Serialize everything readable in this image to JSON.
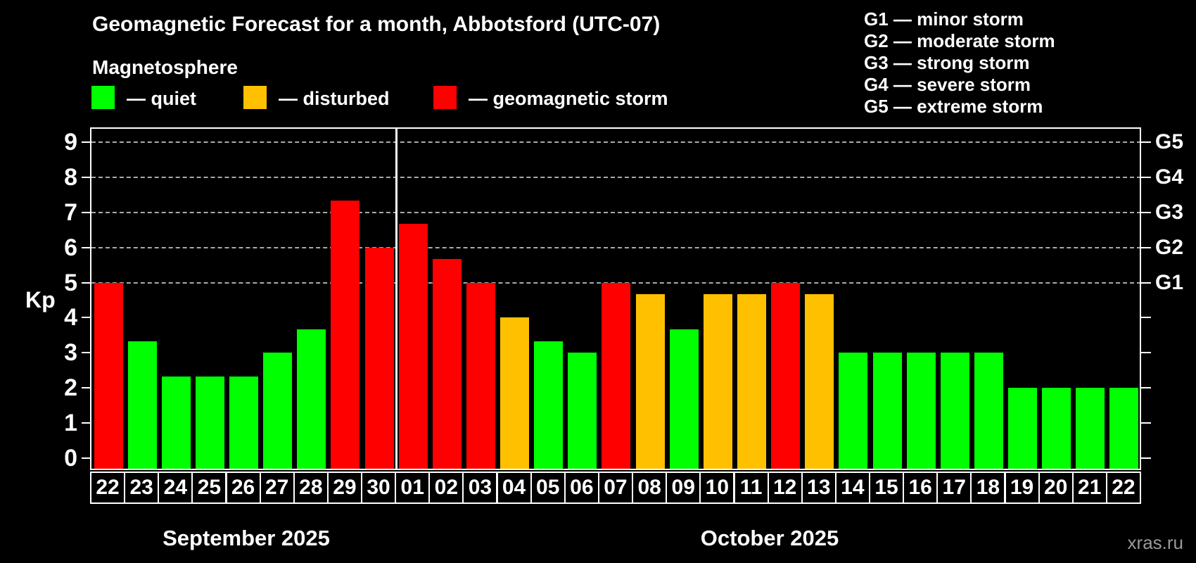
{
  "header": {
    "title": "Geomagnetic Forecast for a month, Abbotsford (UTC-07)",
    "subtitle": "Magnetosphere"
  },
  "legend": {
    "items": [
      {
        "status": "quiet",
        "label": "— quiet",
        "color": "#00ff00"
      },
      {
        "status": "disturbed",
        "label": "— disturbed",
        "color": "#ffc000"
      },
      {
        "status": "storm",
        "label": "— geomagnetic storm",
        "color": "#ff0000"
      }
    ]
  },
  "storm_scale_legend": {
    "items": [
      "G1 — minor storm",
      "G2 — moderate storm",
      "G3 — strong storm",
      "G4 — severe storm",
      "G5 — extreme storm"
    ]
  },
  "watermark": "xras.ru",
  "chart_data": {
    "type": "bar",
    "title": "Geomagnetic Forecast for a month, Abbotsford (UTC-07)",
    "subtitle": "Magnetosphere",
    "ylabel": "Kp",
    "ylim": [
      0,
      9
    ],
    "yticks": [
      0,
      1,
      2,
      3,
      4,
      5,
      6,
      7,
      8,
      9
    ],
    "gridlines_at": [
      5,
      6,
      7,
      8,
      9
    ],
    "grid": "dashed",
    "right_axis_labels": [
      {
        "label": "G1",
        "kp": 5
      },
      {
        "label": "G2",
        "kp": 6
      },
      {
        "label": "G3",
        "kp": 7
      },
      {
        "label": "G4",
        "kp": 8
      },
      {
        "label": "G5",
        "kp": 9
      }
    ],
    "months": [
      {
        "label": "September 2025",
        "first_slot": 0,
        "num_days": 9
      },
      {
        "label": "October 2025",
        "first_slot": 9,
        "num_days": 22
      }
    ],
    "categories": [
      "22",
      "23",
      "24",
      "25",
      "26",
      "27",
      "28",
      "29",
      "30",
      "01",
      "02",
      "03",
      "04",
      "05",
      "06",
      "07",
      "08",
      "09",
      "10",
      "11",
      "12",
      "13",
      "14",
      "15",
      "16",
      "17",
      "18",
      "19",
      "20",
      "21",
      "22"
    ],
    "values": [
      5,
      3.33,
      2.33,
      2.33,
      2.33,
      3,
      3.67,
      7.33,
      6,
      6.67,
      5.67,
      5,
      4,
      3.33,
      3,
      5,
      4.67,
      3.67,
      4.67,
      4.67,
      5,
      4.67,
      3,
      3,
      3,
      3,
      3,
      2,
      2,
      2,
      2
    ],
    "statuses": [
      "storm",
      "quiet",
      "quiet",
      "quiet",
      "quiet",
      "quiet",
      "quiet",
      "storm",
      "storm",
      "storm",
      "storm",
      "storm",
      "disturbed",
      "quiet",
      "quiet",
      "storm",
      "disturbed",
      "quiet",
      "disturbed",
      "disturbed",
      "storm",
      "disturbed",
      "quiet",
      "quiet",
      "quiet",
      "quiet",
      "quiet",
      "quiet",
      "quiet",
      "quiet",
      "quiet"
    ],
    "status_colors": {
      "quiet": "#00ff00",
      "disturbed": "#ffc000",
      "storm": "#ff0000"
    }
  }
}
